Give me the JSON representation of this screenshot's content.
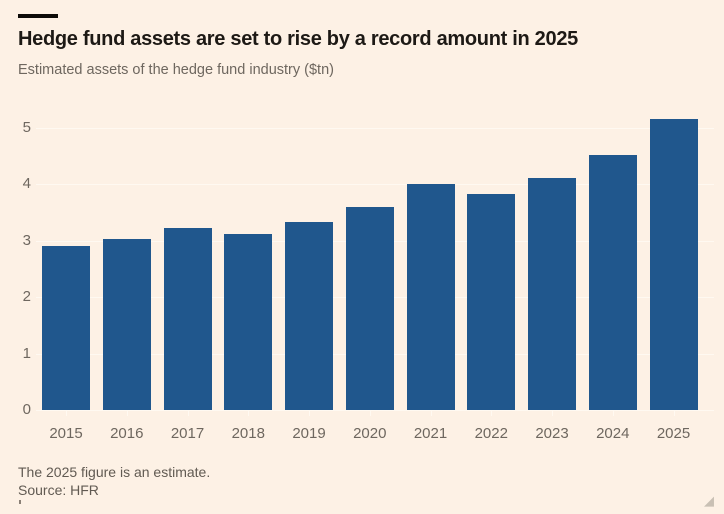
{
  "chart_data": {
    "type": "bar",
    "title": "Hedge fund assets are set to rise by a record amount in 2025",
    "subtitle": "Estimated assets of the hedge fund industry ($tn)",
    "categories": [
      "2015",
      "2016",
      "2017",
      "2018",
      "2019",
      "2020",
      "2021",
      "2022",
      "2023",
      "2024",
      "2025"
    ],
    "values": [
      2.9,
      3.02,
      3.22,
      3.11,
      3.33,
      3.6,
      4.0,
      3.83,
      4.11,
      4.51,
      5.15
    ],
    "xlabel": "",
    "ylabel": "",
    "ylim": [
      0,
      5.3
    ],
    "yticks": [
      0,
      1,
      2,
      3,
      4,
      5
    ],
    "grid": true,
    "legend_position": "none",
    "note": "The 2025 figure is an estimate.",
    "source": "Source: HFR"
  },
  "colors": {
    "background": "#fdf1e5",
    "bar": "#20578d",
    "gridline": "#fff9f1",
    "title_text": "#1d1915",
    "muted_text": "#6e675f",
    "footer_text": "#615a52",
    "title_rule": "#0d0b08",
    "resize_handle": "#c9c0b4"
  },
  "icons": {
    "resize_handle": "◢"
  }
}
